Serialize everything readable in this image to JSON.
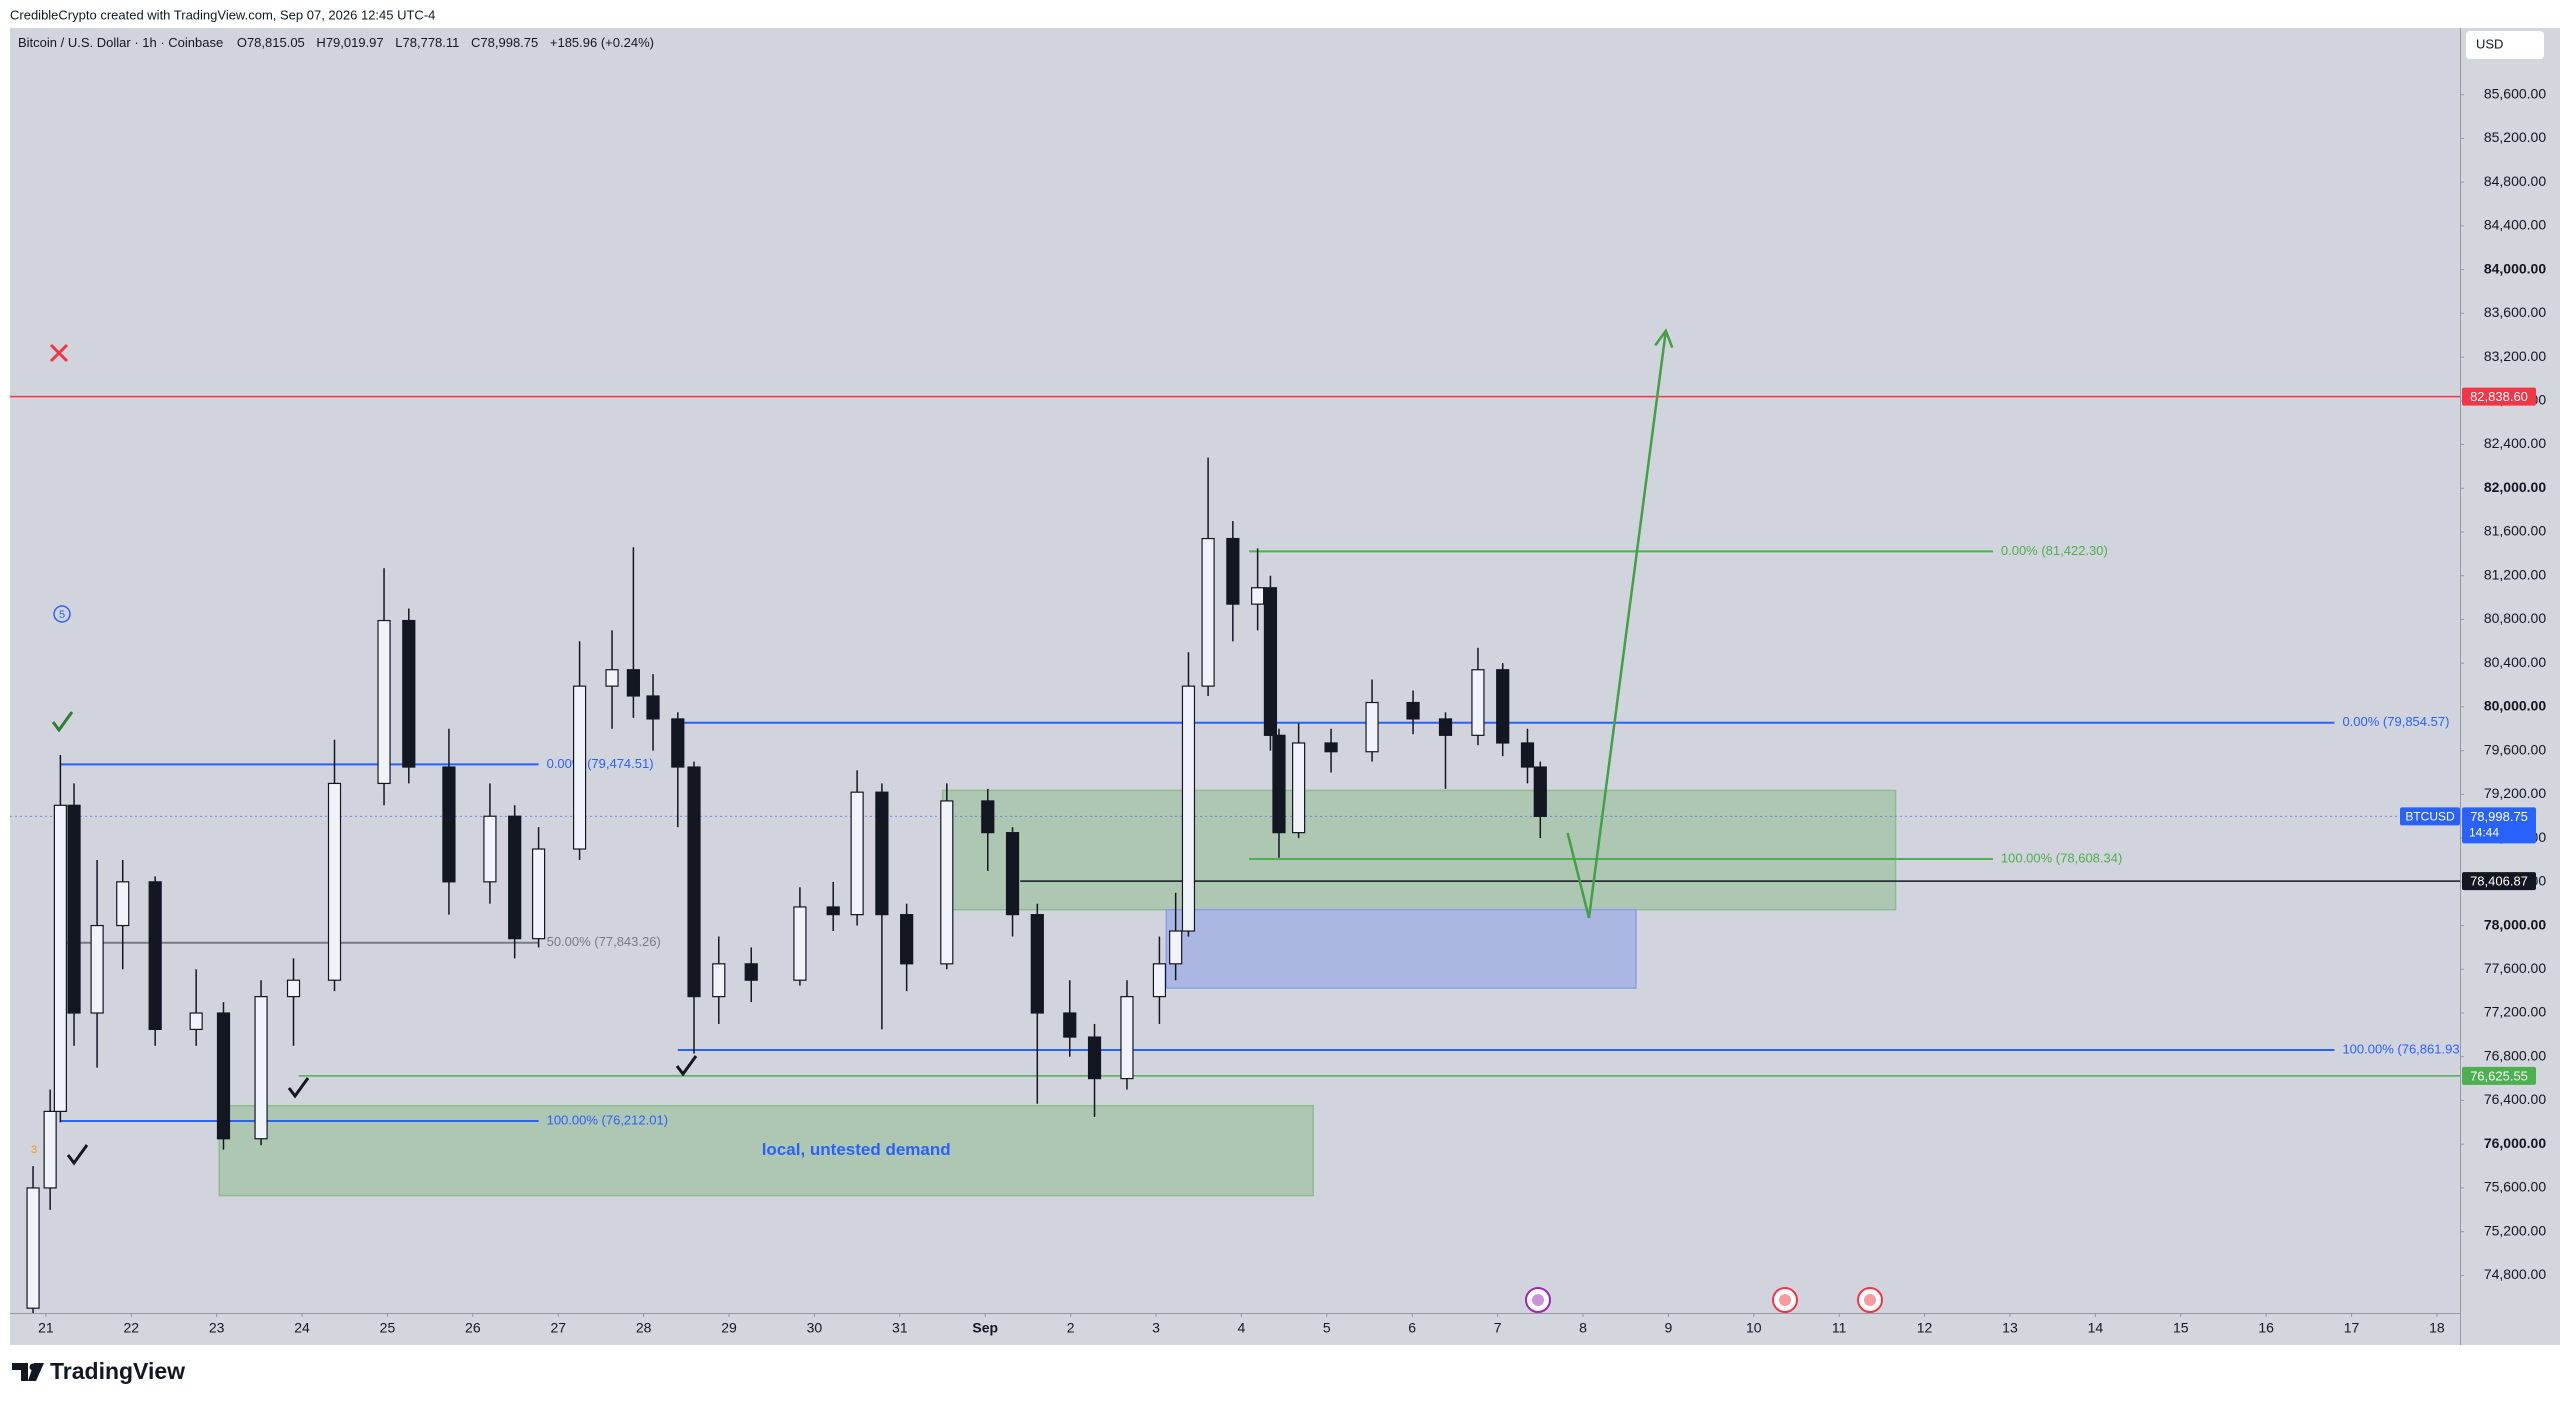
{
  "header": {
    "credit": "CredibleCrypto created with TradingView.com, Sep 07, 2026 12:45 UTC-4"
  },
  "brand": "TradingView",
  "chart_data": {
    "type": "candlestick",
    "title": "Bitcoin / U.S. Dollar · 1h · Coinbase",
    "ohlc_legend": [
      {
        "key": "O",
        "value": "78,815.05"
      },
      {
        "key": "H",
        "value": "79,019.97"
      },
      {
        "key": "L",
        "value": "78,778.11"
      },
      {
        "key": "C",
        "value": "78,998.75"
      }
    ],
    "change": "+185.96 (+0.24%)",
    "currency": "USD",
    "x": [
      -0.15,
      0.05,
      0.17,
      0.33,
      0.6,
      0.9,
      1.28,
      1.76,
      2.08,
      2.52,
      2.9,
      3.38,
      3.96,
      4.25,
      4.72,
      5.2,
      5.49,
      5.77,
      6.25,
      6.63,
      6.88,
      7.11,
      7.4,
      7.59,
      7.88,
      8.26,
      8.83,
      9.22,
      9.5,
      9.79,
      10.08,
      10.55,
      11.03,
      11.32,
      11.61,
      11.99,
      12.28,
      12.66,
      13.04,
      13.23,
      13.38,
      13.61,
      13.9,
      14.19,
      14.34,
      14.44,
      14.67,
      15.05,
      15.53,
      16.01,
      16.39,
      16.77,
      17.06,
      17.35,
      17.5
    ],
    "open": [
      74500,
      75600,
      76300,
      79100,
      77200,
      78000,
      78400,
      77050,
      77200,
      76050,
      77350,
      77500,
      79300,
      80790,
      79450,
      78400,
      79000,
      77880,
      78700,
      80190,
      80340,
      80100,
      79890,
      79450,
      77350,
      77650,
      77500,
      78170,
      78100,
      79220,
      78100,
      77650,
      79140,
      78850,
      78100,
      77200,
      76980,
      76600,
      77350,
      77650,
      77950,
      80190,
      81540,
      80940,
      81090,
      79740,
      78850,
      79670,
      79590,
      80040,
      79890,
      79740,
      80340,
      79670,
      79450
    ],
    "high": [
      75800,
      76500,
      79560,
      79300,
      78600,
      78600,
      78450,
      77600,
      77300,
      77500,
      77700,
      79700,
      81270,
      80900,
      79800,
      79300,
      79100,
      78900,
      80600,
      80700,
      81460,
      80300,
      79950,
      79500,
      77900,
      77800,
      78350,
      78400,
      79420,
      79300,
      78200,
      79300,
      79250,
      78900,
      78200,
      77500,
      77100,
      77500,
      77900,
      78300,
      80500,
      82280,
      81700,
      81450,
      81200,
      79800,
      79850,
      79800,
      80250,
      80150,
      79950,
      80540,
      80400,
      79800,
      79500
    ],
    "low": [
      74450,
      75400,
      76200,
      76900,
      76700,
      77600,
      76900,
      76900,
      75950,
      75990,
      76900,
      77400,
      79100,
      79300,
      78100,
      78200,
      77700,
      77800,
      78600,
      79800,
      79900,
      79600,
      78900,
      76830,
      77100,
      77300,
      77450,
      77950,
      78000,
      77050,
      77400,
      77600,
      78500,
      77900,
      76370,
      76800,
      76250,
      76500,
      77100,
      77500,
      77900,
      80100,
      80600,
      80700,
      79600,
      78620,
      78800,
      79400,
      79500,
      79750,
      79250,
      79650,
      79550,
      79300,
      78800
    ],
    "close": [
      75600,
      76300,
      79100,
      77200,
      78000,
      78400,
      77050,
      77200,
      76050,
      77350,
      77500,
      79300,
      80790,
      79450,
      78400,
      79000,
      77880,
      78700,
      80190,
      80340,
      80100,
      79890,
      79450,
      77350,
      77650,
      77500,
      78170,
      78100,
      79220,
      78100,
      77650,
      79140,
      78850,
      78100,
      77200,
      76980,
      76600,
      77350,
      77650,
      77950,
      80190,
      81540,
      80940,
      81090,
      79740,
      78850,
      79670,
      79590,
      80040,
      79890,
      79740,
      80340,
      79670,
      79450,
      78998.75
    ],
    "up_color": "#f0f3fa",
    "down_color": "#131722",
    "grid": false,
    "xlim": [
      -0.42,
      28.27
    ],
    "xticks": [
      {
        "value": 0,
        "label": "21"
      },
      {
        "value": 1,
        "label": "22"
      },
      {
        "value": 2,
        "label": "23"
      },
      {
        "value": 3,
        "label": "24"
      },
      {
        "value": 4,
        "label": "25"
      },
      {
        "value": 5,
        "label": "26"
      },
      {
        "value": 6,
        "label": "27"
      },
      {
        "value": 7,
        "label": "28"
      },
      {
        "value": 8,
        "label": "29"
      },
      {
        "value": 9,
        "label": "30"
      },
      {
        "value": 10,
        "label": "31"
      },
      {
        "value": 11,
        "label": "Sep"
      },
      {
        "value": 12,
        "label": "2"
      },
      {
        "value": 13,
        "label": "3"
      },
      {
        "value": 14,
        "label": "4"
      },
      {
        "value": 15,
        "label": "5"
      },
      {
        "value": 16,
        "label": "6"
      },
      {
        "value": 17,
        "label": "7"
      },
      {
        "value": 18,
        "label": "8"
      },
      {
        "value": 19,
        "label": "9"
      },
      {
        "value": 20,
        "label": "10"
      },
      {
        "value": 21,
        "label": "11"
      },
      {
        "value": 22,
        "label": "12"
      },
      {
        "value": 23,
        "label": "13"
      },
      {
        "value": 24,
        "label": "14"
      },
      {
        "value": 25,
        "label": "15"
      },
      {
        "value": 26,
        "label": "16"
      },
      {
        "value": 27,
        "label": "17"
      },
      {
        "value": 28,
        "label": "18"
      }
    ],
    "ylim": [
      74456,
      86210
    ],
    "yticks": [
      {
        "value": 74800,
        "label": "74,800.00"
      },
      {
        "value": 75200,
        "label": "75,200.00"
      },
      {
        "value": 75600,
        "label": "75,600.00"
      },
      {
        "value": 76000,
        "label": "76,000.00"
      },
      {
        "value": 76400,
        "label": "76,400.00"
      },
      {
        "value": 76800,
        "label": "76,800.00"
      },
      {
        "value": 77200,
        "label": "77,200.00"
      },
      {
        "value": 77600,
        "label": "77,600.00"
      },
      {
        "value": 78000,
        "label": "78,000.00"
      },
      {
        "value": 78400,
        "label": "78,400.00"
      },
      {
        "value": 78800,
        "label": "78,800.00"
      },
      {
        "value": 79200,
        "label": "79,200.00"
      },
      {
        "value": 79600,
        "label": "79,600.00"
      },
      {
        "value": 80000,
        "label": "80,000.00"
      },
      {
        "value": 80400,
        "label": "80,400.00"
      },
      {
        "value": 80800,
        "label": "80,800.00"
      },
      {
        "value": 81200,
        "label": "81,200.00"
      },
      {
        "value": 81600,
        "label": "81,600.00"
      },
      {
        "value": 82000,
        "label": "82,000.00"
      },
      {
        "value": 82400,
        "label": "82,400.00"
      },
      {
        "value": 82800,
        "label": "82,800.00"
      },
      {
        "value": 83200,
        "label": "83,200.00"
      },
      {
        "value": 83600,
        "label": "83,600.00"
      },
      {
        "value": 84000,
        "label": "84,000.00"
      },
      {
        "value": 84400,
        "label": "84,400.00"
      },
      {
        "value": 84800,
        "label": "84,800.00"
      },
      {
        "value": 85200,
        "label": "85,200.00"
      },
      {
        "value": 85600,
        "label": "85,600.00"
      }
    ],
    "horizontal_lines": [
      {
        "value": 82838.6,
        "label": "82,838.60",
        "color": "#f23645"
      },
      {
        "value": 78406.87,
        "label": "78,406.87",
        "color": "#131722",
        "start": 11.41
      },
      {
        "value": 76625.55,
        "label": "76,625.55",
        "color": "#4caf50",
        "start": 2.96
      }
    ],
    "last_price": {
      "value": 78998.75,
      "label": "78,998.75",
      "symbol": "BTCUSD",
      "countdown": "14:44",
      "color": "#2962ff"
    },
    "fibs": [
      {
        "x": [
          0.17,
          5.77
        ],
        "levels": [
          {
            "value": 79474.51,
            "label": "0.00% (79,474.51)",
            "color": "#2962ff"
          },
          {
            "value": 77843.26,
            "label": "50.00% (77,843.26)",
            "color": "#787b86"
          },
          {
            "value": 76212.01,
            "label": "100.00% (76,212.01)",
            "color": "#2962ff"
          }
        ]
      },
      {
        "x": [
          7.4,
          26.8
        ],
        "levels": [
          {
            "value": 79854.57,
            "label": "0.00% (79,854.57)",
            "color": "#2962ff"
          },
          {
            "value": 76861.93,
            "label": "100.00% (76,861.93)",
            "color": "#2962ff"
          }
        ]
      },
      {
        "x": [
          14.09,
          22.8
        ],
        "levels": [
          {
            "value": 81422.3,
            "label": "0.00% (81,422.30)",
            "color": "#4caf50"
          },
          {
            "value": 78608.34,
            "label": "100.00% (78,608.34)",
            "color": "#4caf50"
          }
        ]
      }
    ],
    "zones": [
      {
        "x": [
          2.03,
          14.84
        ],
        "y": [
          75530,
          76352
        ],
        "color": "#8fbc8f",
        "label": "local, untested demand"
      },
      {
        "x": [
          10.5,
          21.66
        ],
        "y": [
          78145,
          79236
        ],
        "color": "#8fbc8f"
      },
      {
        "x": [
          13.12,
          18.62
        ],
        "y": [
          77428,
          78145
        ],
        "color": "#8c9ee8"
      }
    ],
    "projection": {
      "x": [
        17.82,
        18.07,
        18.97
      ],
      "y": [
        78847,
        78070,
        83440
      ],
      "color": "#43a047"
    },
    "wave_labels": [
      "5",
      "3"
    ]
  }
}
